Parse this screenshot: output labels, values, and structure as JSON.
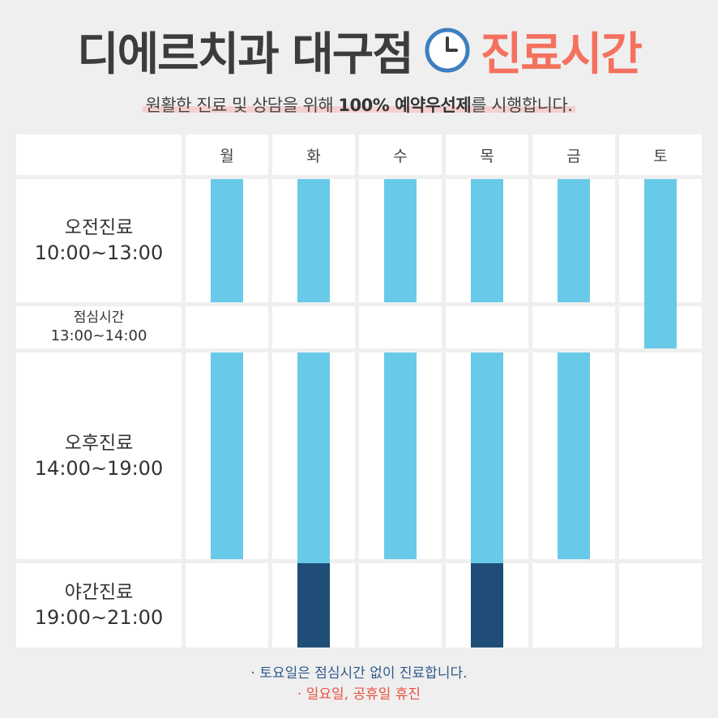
{
  "header": {
    "title_main": "디에르치과 대구점",
    "title_accent": "진료시간",
    "subtitle_pre": "원활한 진료 및 상담을 위해 ",
    "subtitle_bold": "100% 예약우선제",
    "subtitle_post": "를 시행합니다."
  },
  "colors": {
    "title_dark": "#3c3c3c",
    "title_accent": "#f4715f",
    "bar_regular": "#68cae8",
    "bar_night": "#1f4d77",
    "note_blue": "#2f5a8c",
    "note_red": "#e8503f"
  },
  "icons": {
    "title_icon": "clock-icon"
  },
  "schedule": {
    "days": [
      "월",
      "화",
      "수",
      "목",
      "금",
      "토"
    ],
    "slots": [
      {
        "name": "오전진료",
        "time": "10:00~13:00"
      },
      {
        "name": "점심시간",
        "time": "13:00~14:00"
      },
      {
        "name": "오후진료",
        "time": "14:00~19:00"
      },
      {
        "name": "야간진료",
        "time": "19:00~21:00"
      }
    ],
    "open": [
      [
        "regular",
        "regular",
        "regular",
        "regular",
        "regular",
        "regular"
      ],
      [
        "none",
        "none",
        "none",
        "none",
        "none",
        "regular"
      ],
      [
        "regular",
        "regular",
        "regular",
        "regular",
        "regular",
        "none"
      ],
      [
        "none",
        "night",
        "none",
        "night",
        "none",
        "none"
      ]
    ]
  },
  "notes": {
    "note1": "· 토요일은 점심시간 없이 진료합니다.",
    "note2": "· 일요일, 공휴일 휴진"
  }
}
